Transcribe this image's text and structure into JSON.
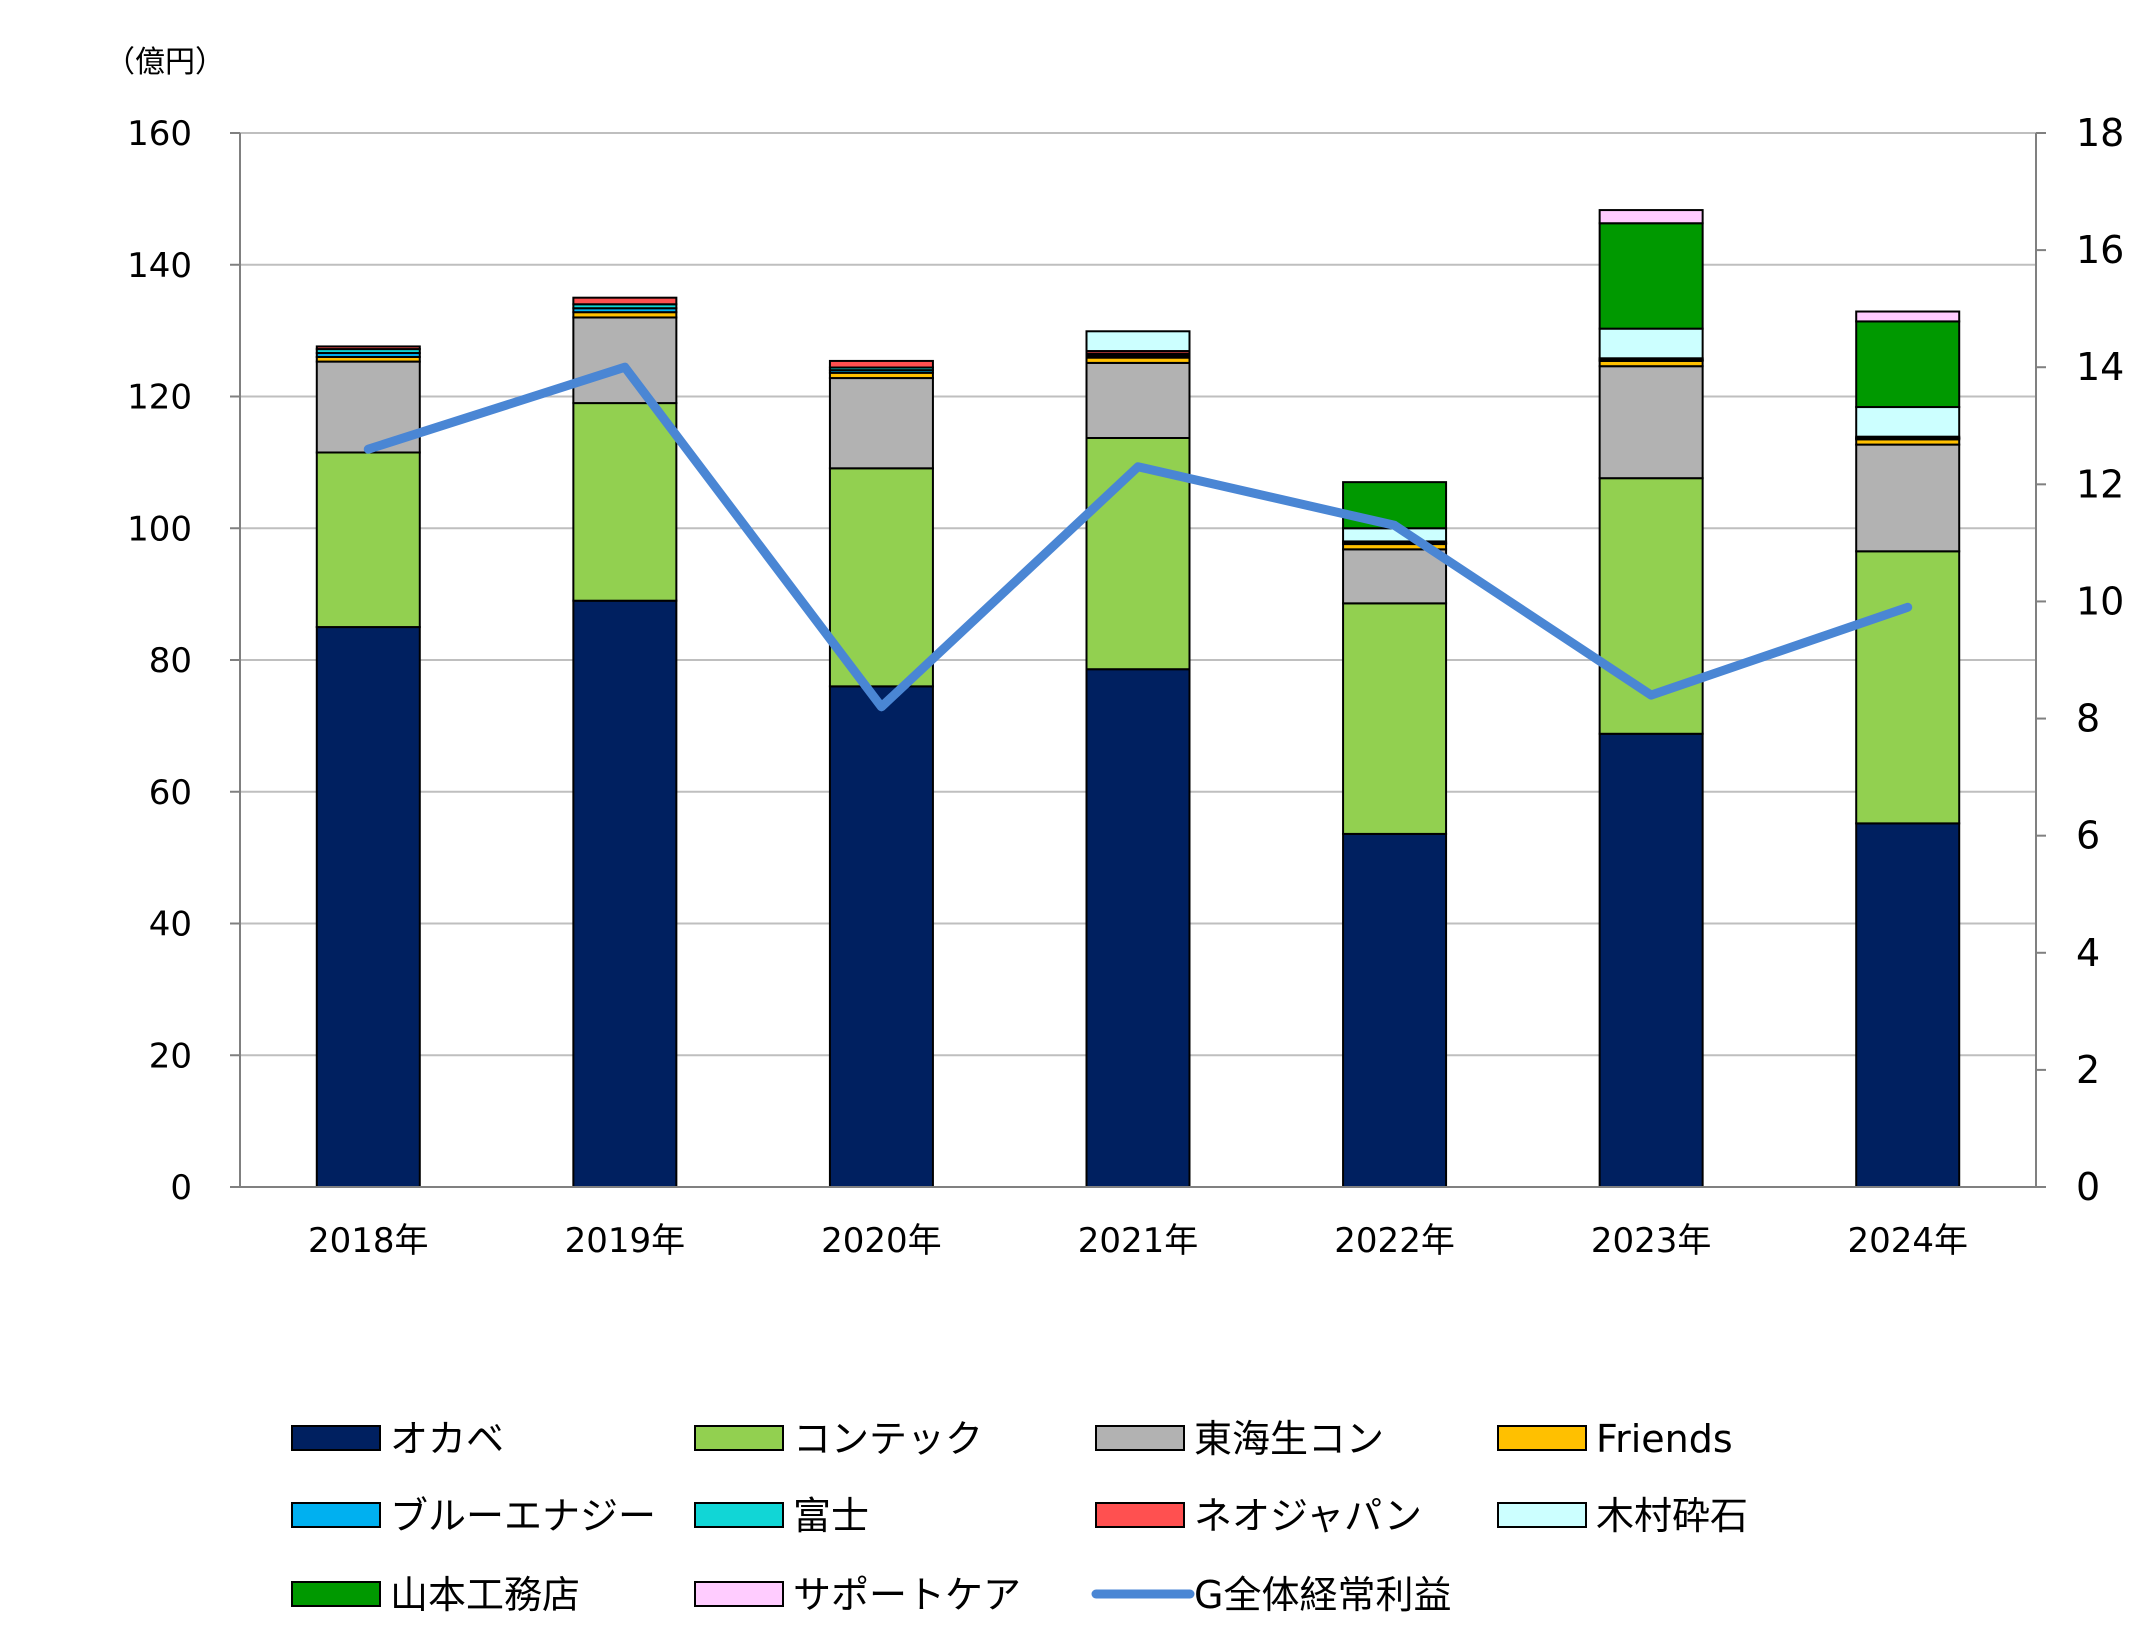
{
  "chart_data": {
    "type": "bar",
    "stacked": true,
    "y_unit_label": "（億円）",
    "categories": [
      "2018年",
      "2019年",
      "2020年",
      "2021年",
      "2022年",
      "2023年",
      "2024年"
    ],
    "ylim": [
      0,
      160
    ],
    "yticks": [
      0,
      20,
      40,
      60,
      80,
      100,
      120,
      140,
      160
    ],
    "y2lim": [
      0,
      18
    ],
    "y2ticks": [
      0,
      2,
      4,
      6,
      8,
      10,
      12,
      14,
      16,
      18
    ],
    "grid": true,
    "legend_position": "bottom",
    "series": [
      {
        "name": "オカベ",
        "color": "#002060",
        "values": [
          85,
          89,
          76,
          78.6,
          53.6,
          68.8,
          55.2
        ]
      },
      {
        "name": "コンテック",
        "color": "#92D050",
        "values": [
          26.5,
          30,
          33.1,
          35.1,
          35,
          38.8,
          41.3
        ]
      },
      {
        "name": "東海生コン",
        "color": "#B2B2B2",
        "values": [
          13.8,
          13,
          13.7,
          11.4,
          8.2,
          17,
          16.2
        ]
      },
      {
        "name": "Friends",
        "color": "#FFC000",
        "values": [
          0.7,
          0.8,
          0.8,
          0.8,
          0.8,
          0.8,
          0.8
        ]
      },
      {
        "name": "ブルーエナジー",
        "color": "#00B0F0",
        "values": [
          0.6,
          0.6,
          0.4,
          0.3,
          0.1,
          0.1,
          0.1
        ]
      },
      {
        "name": "富士",
        "color": "#11D6D6",
        "values": [
          0.6,
          0.6,
          0.4,
          0.3,
          0.1,
          0.1,
          0.1
        ]
      },
      {
        "name": "ネオジャパン",
        "color": "#FF5050",
        "values": [
          0.4,
          1,
          1,
          0.4,
          0.2,
          0.2,
          0.2
        ]
      },
      {
        "name": "木村砕石",
        "color": "#CCFFFF",
        "values": [
          0,
          0,
          0,
          3,
          2,
          4.5,
          4.5
        ]
      },
      {
        "name": "山本工務店",
        "color": "#009900",
        "values": [
          0,
          0,
          0,
          0,
          7,
          16,
          13
        ]
      },
      {
        "name": "サポートケア",
        "color": "#FFCCFF",
        "values": [
          0,
          0,
          0,
          0,
          0,
          2,
          1.5
        ]
      }
    ],
    "line_series": {
      "name": "G全体経常利益",
      "color": "#4A86D4",
      "axis": "right",
      "values": [
        12.6,
        14,
        8.2,
        12.3,
        11.3,
        8.4,
        9.9
      ]
    }
  }
}
